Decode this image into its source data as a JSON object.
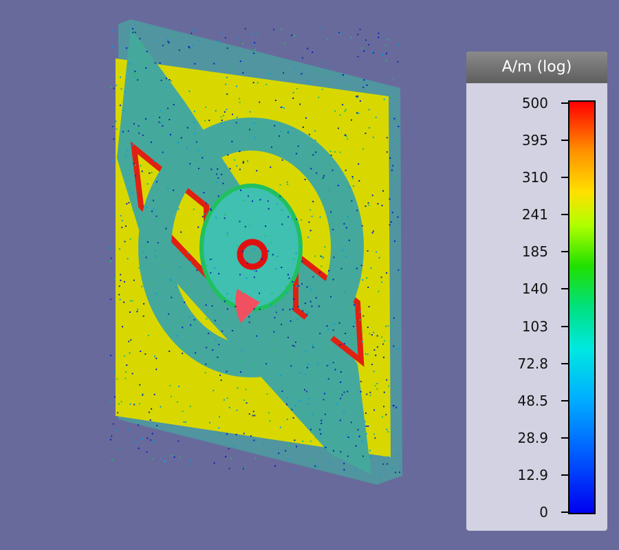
{
  "legend": {
    "title": "A/m (log)",
    "ticks": [
      "500",
      "395",
      "310",
      "241",
      "185",
      "140",
      "103",
      "72.8",
      "48.5",
      "28.9",
      "12.9",
      "0"
    ]
  }
}
